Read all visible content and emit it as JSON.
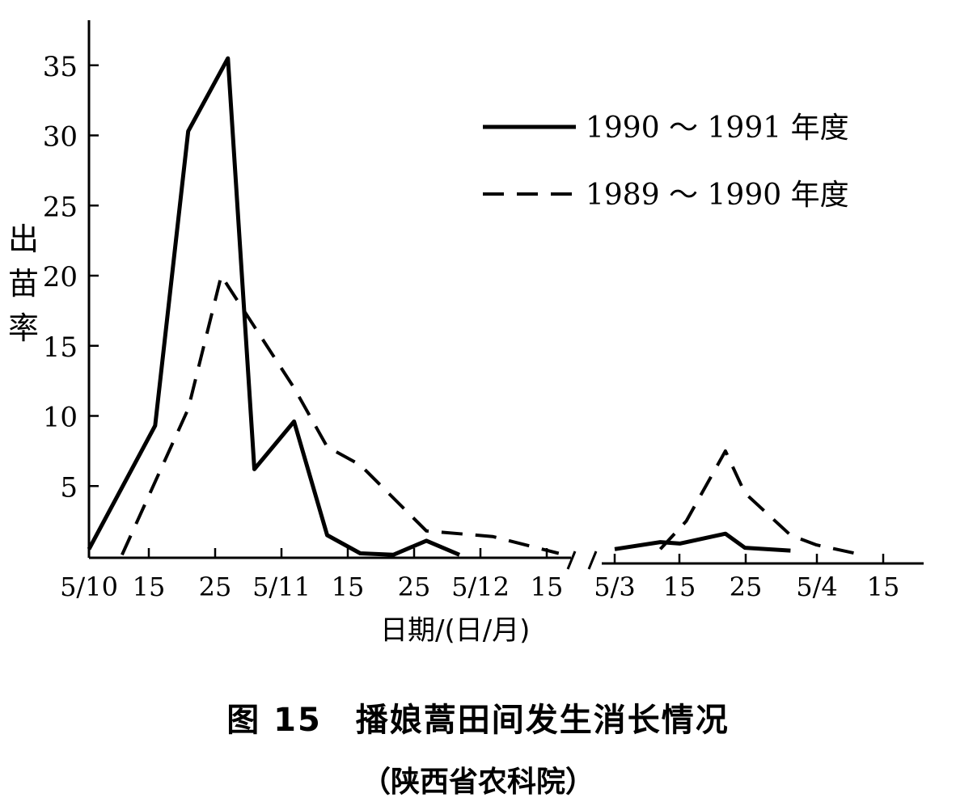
{
  "chart_data": {
    "type": "line",
    "title": "图 15　播娘蒿田间发生消长情况",
    "subtitle": "（陕西省农科院）",
    "xlabel": "日期/(日/月)",
    "ylabel": "出苗率",
    "yticks": [
      "5",
      "10",
      "15",
      "20",
      "25",
      "30",
      "35"
    ],
    "ylim": [
      0,
      36
    ],
    "x_axis_break": true,
    "xticks_segment1": [
      "5/10",
      "15",
      "25",
      "5/11",
      "15",
      "25",
      "5/12",
      "15"
    ],
    "xticks_segment2": [
      "5/3",
      "15",
      "25",
      "5/4",
      "15"
    ],
    "legend_position": "top-right",
    "series": [
      {
        "name": "1990 ～ 1991 年度",
        "style": "solid",
        "segment1": {
          "x": [
            "5/10",
            "15/10",
            "20/10",
            "26/10",
            "30/10",
            "5/11",
            "10/11",
            "15/11",
            "20/11",
            "25/11",
            "30/11"
          ],
          "y": [
            0.5,
            9.3,
            30.3,
            35.5,
            6.2,
            9.6,
            1.5,
            0.2,
            0.1,
            1.1,
            0.1
          ]
        },
        "segment2": {
          "x": [
            "5/3",
            "12/3",
            "15/3",
            "22/3",
            "25/3",
            "1/4"
          ],
          "y": [
            0.5,
            1.0,
            0.9,
            1.6,
            0.6,
            0.4
          ]
        }
      },
      {
        "name": "1989 ～ 1990 年度",
        "style": "dashed",
        "segment1": {
          "x": [
            "10/10",
            "20/10",
            "25/10",
            "5/11",
            "10/11",
            "15/11",
            "25/11",
            "5/12",
            "15/12"
          ],
          "y": [
            0.1,
            10.5,
            20.0,
            12.0,
            7.8,
            6.5,
            1.8,
            1.4,
            0.2
          ]
        },
        "segment2": {
          "x": [
            "12/3",
            "16/3",
            "22/3",
            "25/3",
            "1/4",
            "5/4",
            "12/4"
          ],
          "y": [
            0.5,
            2.5,
            7.5,
            4.5,
            1.5,
            0.8,
            0.1
          ]
        }
      }
    ]
  }
}
